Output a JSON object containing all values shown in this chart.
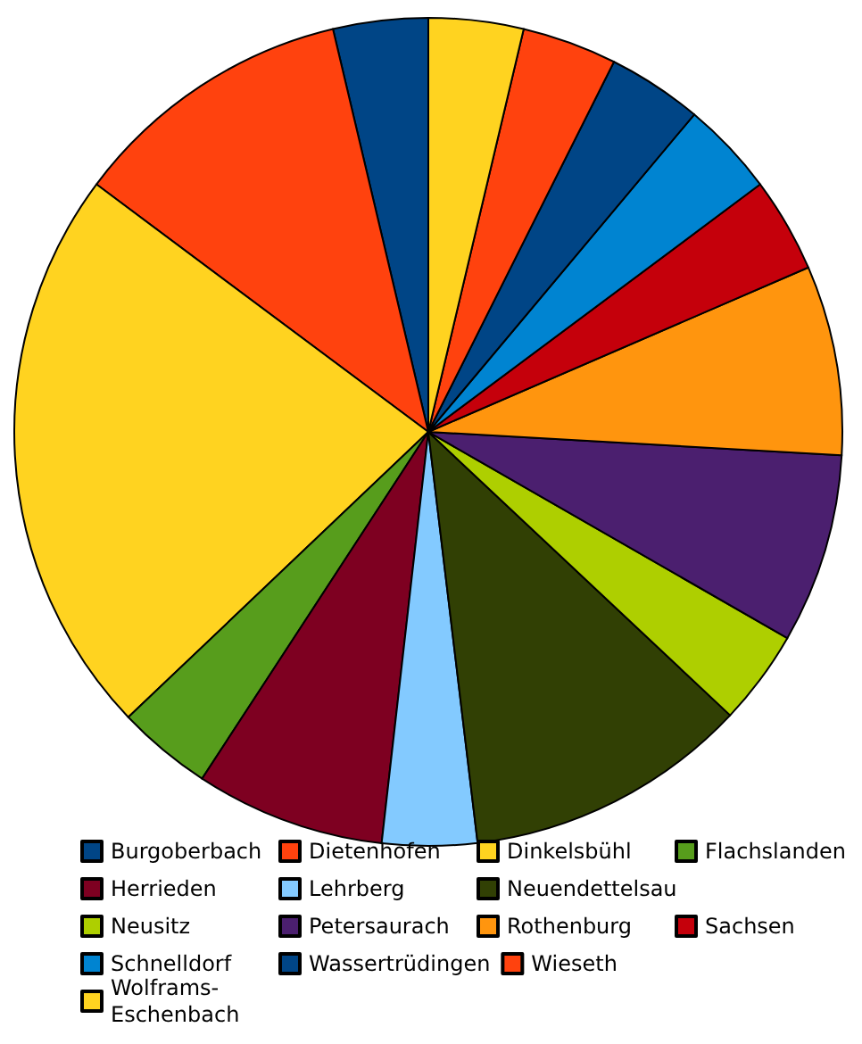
{
  "chart_data": {
    "type": "pie",
    "categories": [
      "Burgoberbach",
      "Dietenhofen",
      "Dinkelsbühl",
      "Flachslanden",
      "Herrieden",
      "Lehrberg",
      "Neuendettelsau",
      "Neusitz",
      "Petersaurach",
      "Rothenburg",
      "Sachsen",
      "Schnelldorf",
      "Wassertrüdingen",
      "Wieseth",
      "Wolframs-Eschenbach"
    ],
    "values": [
      3.7,
      11.1,
      22.3,
      3.7,
      7.4,
      3.7,
      11.1,
      3.7,
      7.4,
      7.4,
      3.7,
      3.7,
      3.7,
      3.7,
      3.7
    ],
    "colors": [
      "#004586",
      "#ff420e",
      "#ffd320",
      "#579d1c",
      "#7e0021",
      "#83caff",
      "#314004",
      "#aecf00",
      "#4b1f6f",
      "#ff950e",
      "#c5000b",
      "#0084d1",
      "#004586",
      "#ff420e",
      "#ffd320"
    ],
    "legend": "bottom"
  }
}
